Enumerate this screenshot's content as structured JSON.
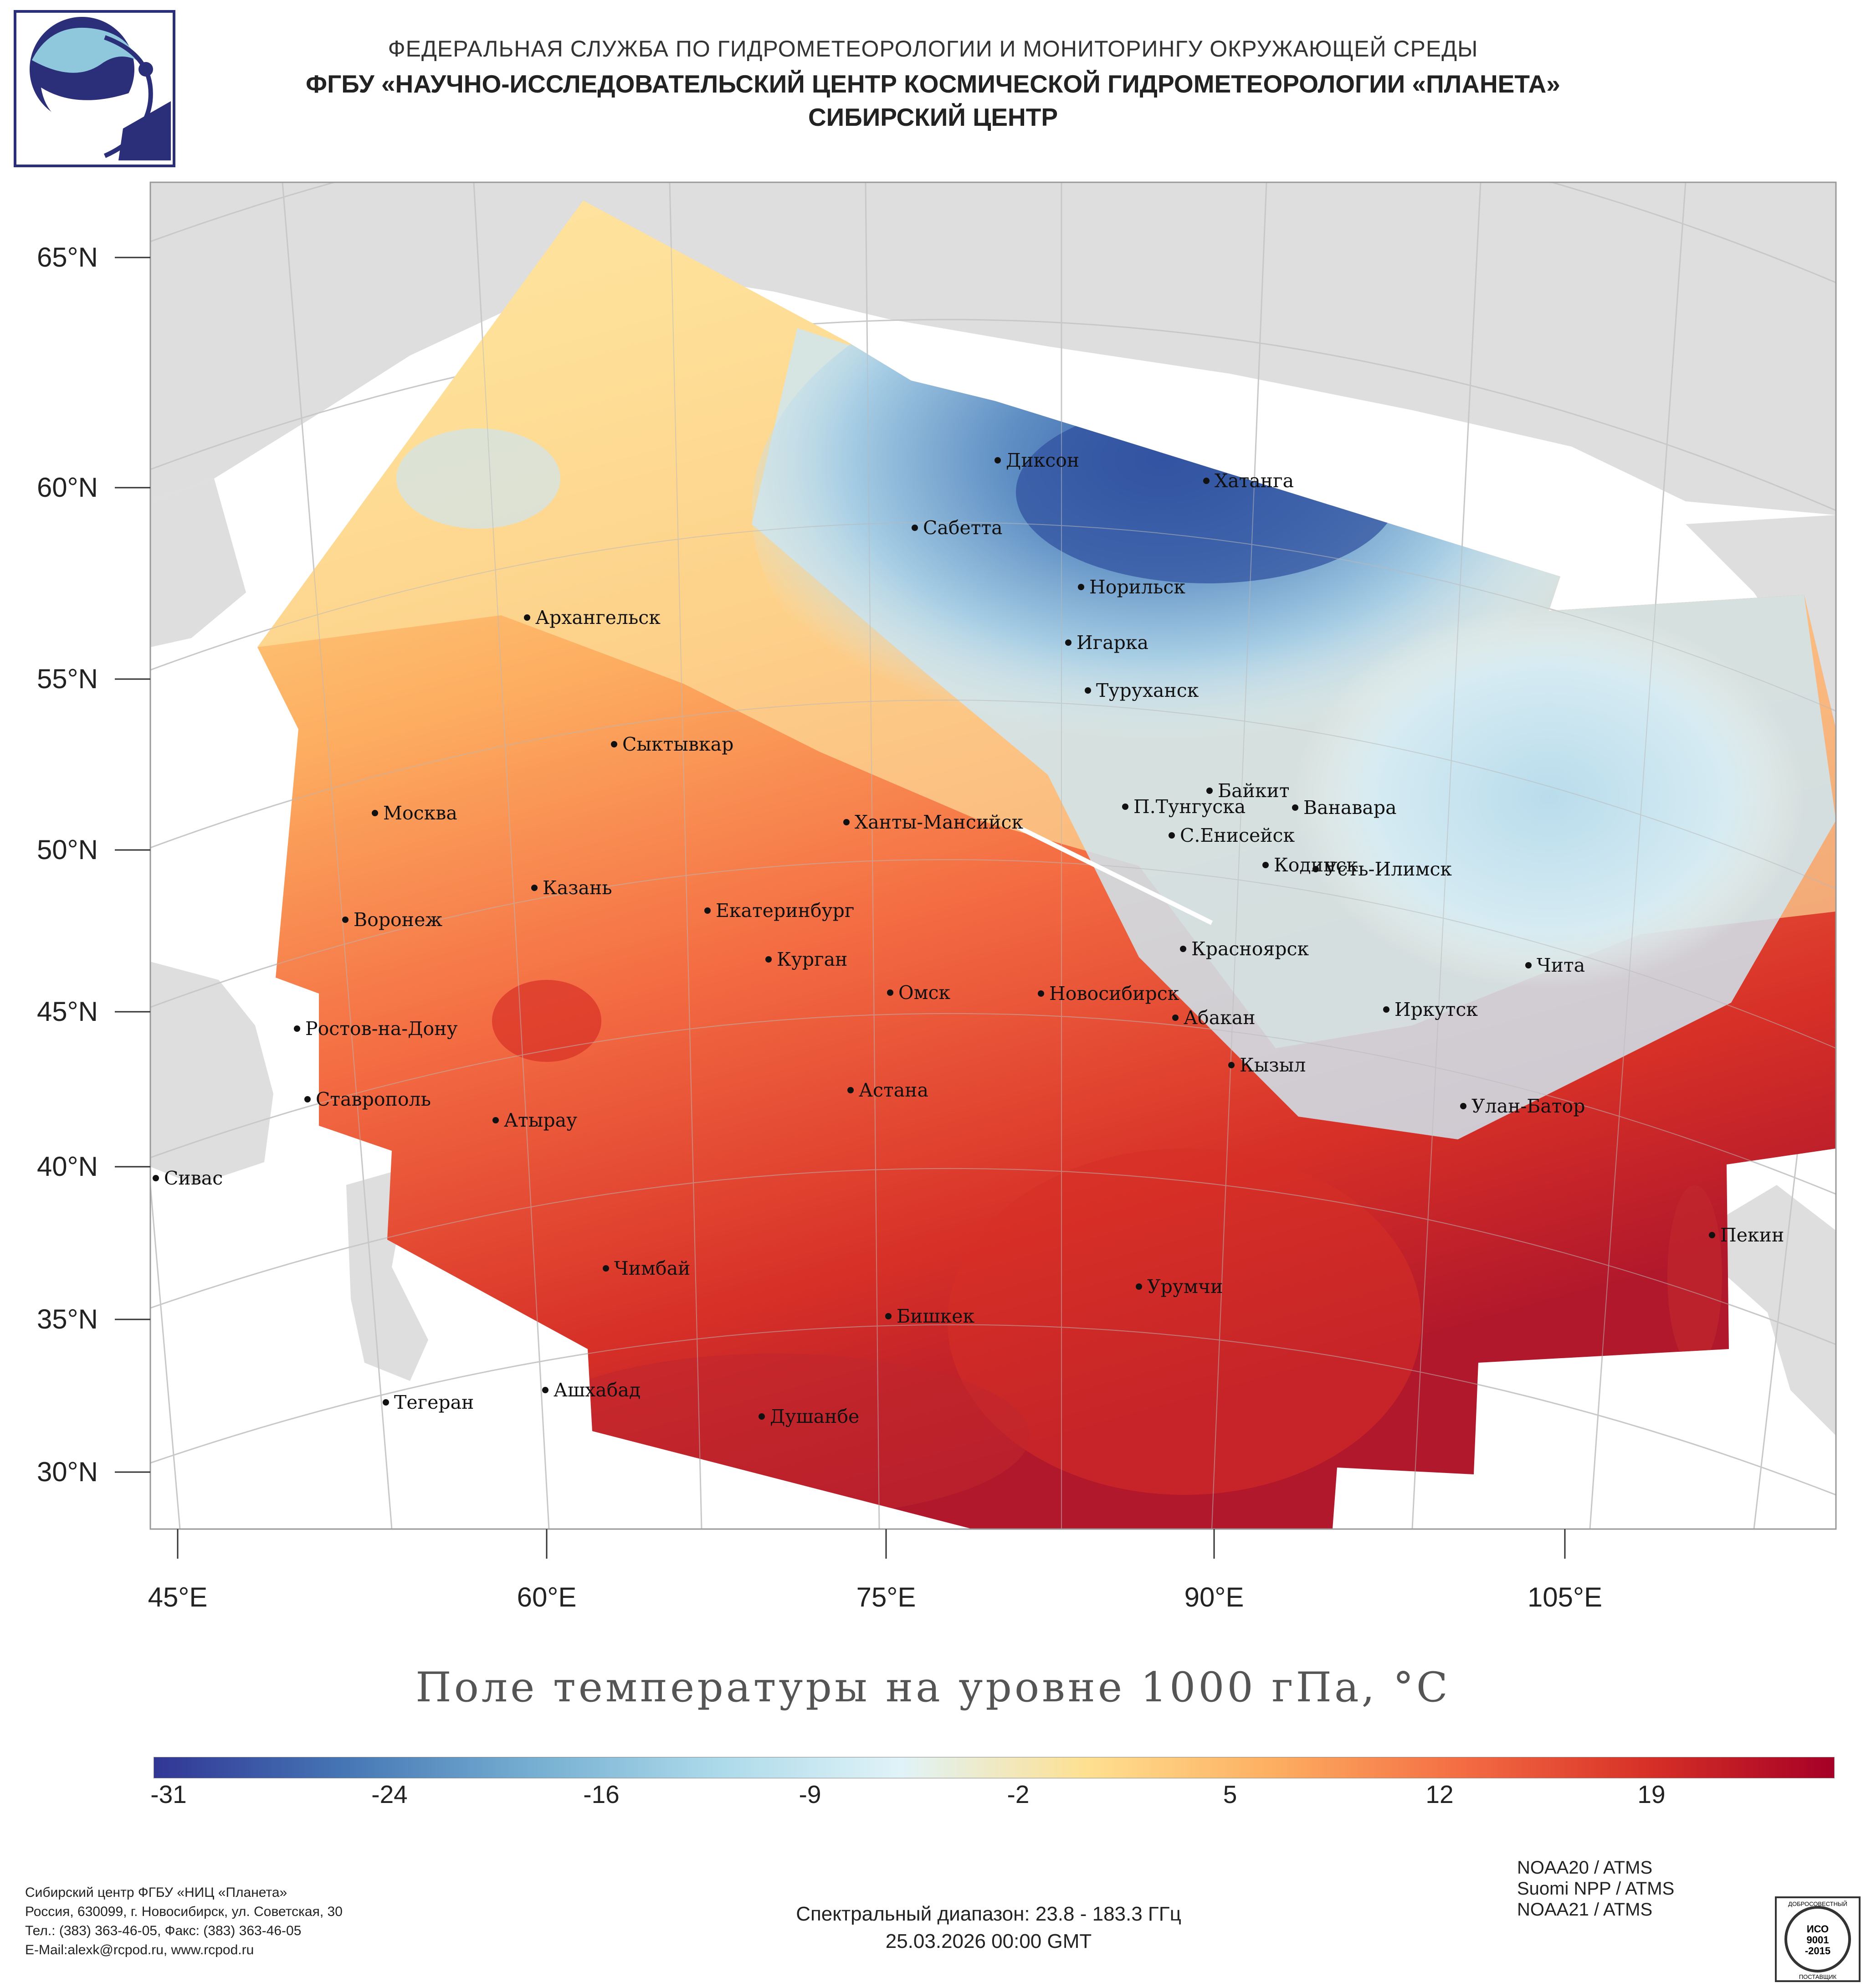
{
  "header": {
    "line1": "ФЕДЕРАЛЬНАЯ СЛУЖБА ПО ГИДРОМЕТЕОРОЛОГИИ И МОНИТОРИНГУ ОКРУЖАЮЩЕЙ СРЕДЫ",
    "line2": "ФГБУ «НАУЧНО-ИССЛЕДОВАТЕЛЬСКИЙ ЦЕНТР КОСМИЧЕСКОЙ ГИДРОМЕТЕОРОЛОГИИ «ПЛАНЕТА»",
    "line3": "СИБИРСКИЙ ЦЕНТР"
  },
  "axes": {
    "lat_labels": [
      "65°N",
      "60°N",
      "55°N",
      "50°N",
      "45°N",
      "40°N",
      "35°N",
      "30°N"
    ],
    "lon_labels": [
      "45°E",
      "60°E",
      "75°E",
      "90°E",
      "105°E"
    ]
  },
  "cities": [
    "Диксон",
    "Хатанга",
    "Сабетта",
    "Норильск",
    "Игарка",
    "Архангельск",
    "Туруханск",
    "Сыктывкар",
    "Байкит",
    "П.Тунгуска",
    "Ванавара",
    "Москва",
    "Ханты-Мансийск",
    "С.Енисейск",
    "Кодинск",
    "Усть-Илимск",
    "Казань",
    "Екатеринбург",
    "Воронеж",
    "Красноярск",
    "Курган",
    "Чита",
    "Омск",
    "Новосибирск",
    "Иркутск",
    "Абакан",
    "Ростов-на-Дону",
    "Кызыл",
    "Ставрополь",
    "Астана",
    "Улан-Батор",
    "Атырау",
    "Сивас",
    "Пекин",
    "Чимбай",
    "Урумчи",
    "Бишкек",
    "Ашхабад",
    "Тегеран",
    "Душанбе"
  ],
  "map_title": "Поле температуры на уровне 1000 гПа, °С",
  "colorbar": {
    "ticks": [
      "-31",
      "-24",
      "-16",
      "-9",
      "-2",
      "5",
      "12",
      "19"
    ],
    "min": -31,
    "max": 24,
    "colors": [
      "#313695",
      "#4575b4",
      "#74add1",
      "#abd9e9",
      "#e0f3f8",
      "#fee090",
      "#fdae61",
      "#f46d43",
      "#d73027",
      "#a50026"
    ]
  },
  "footer": {
    "left": [
      "Сибирский центр ФГБУ «НИЦ «Планета»",
      "Россия, 630099, г. Новосибирск, ул. Советская, 30",
      "Тел.: (383) 363-46-05, Факс: (383) 363-46-05",
      "E-Mail:alexk@rcpod.ru, www.rcpod.ru"
    ],
    "center": [
      "Спектральный диапазон: 23.8 - 183.3 ГГц",
      "25.03.2026 00:00 GMT"
    ],
    "right": [
      "NOAA20 / ATMS",
      "Suomi NPP / ATMS",
      "NOAA21 / ATMS"
    ],
    "cert": [
      "ДОБРОСОВЕСТНЫЙ",
      "ИСО",
      "9001",
      "-2015",
      "ПОСТАВЩИК"
    ]
  }
}
